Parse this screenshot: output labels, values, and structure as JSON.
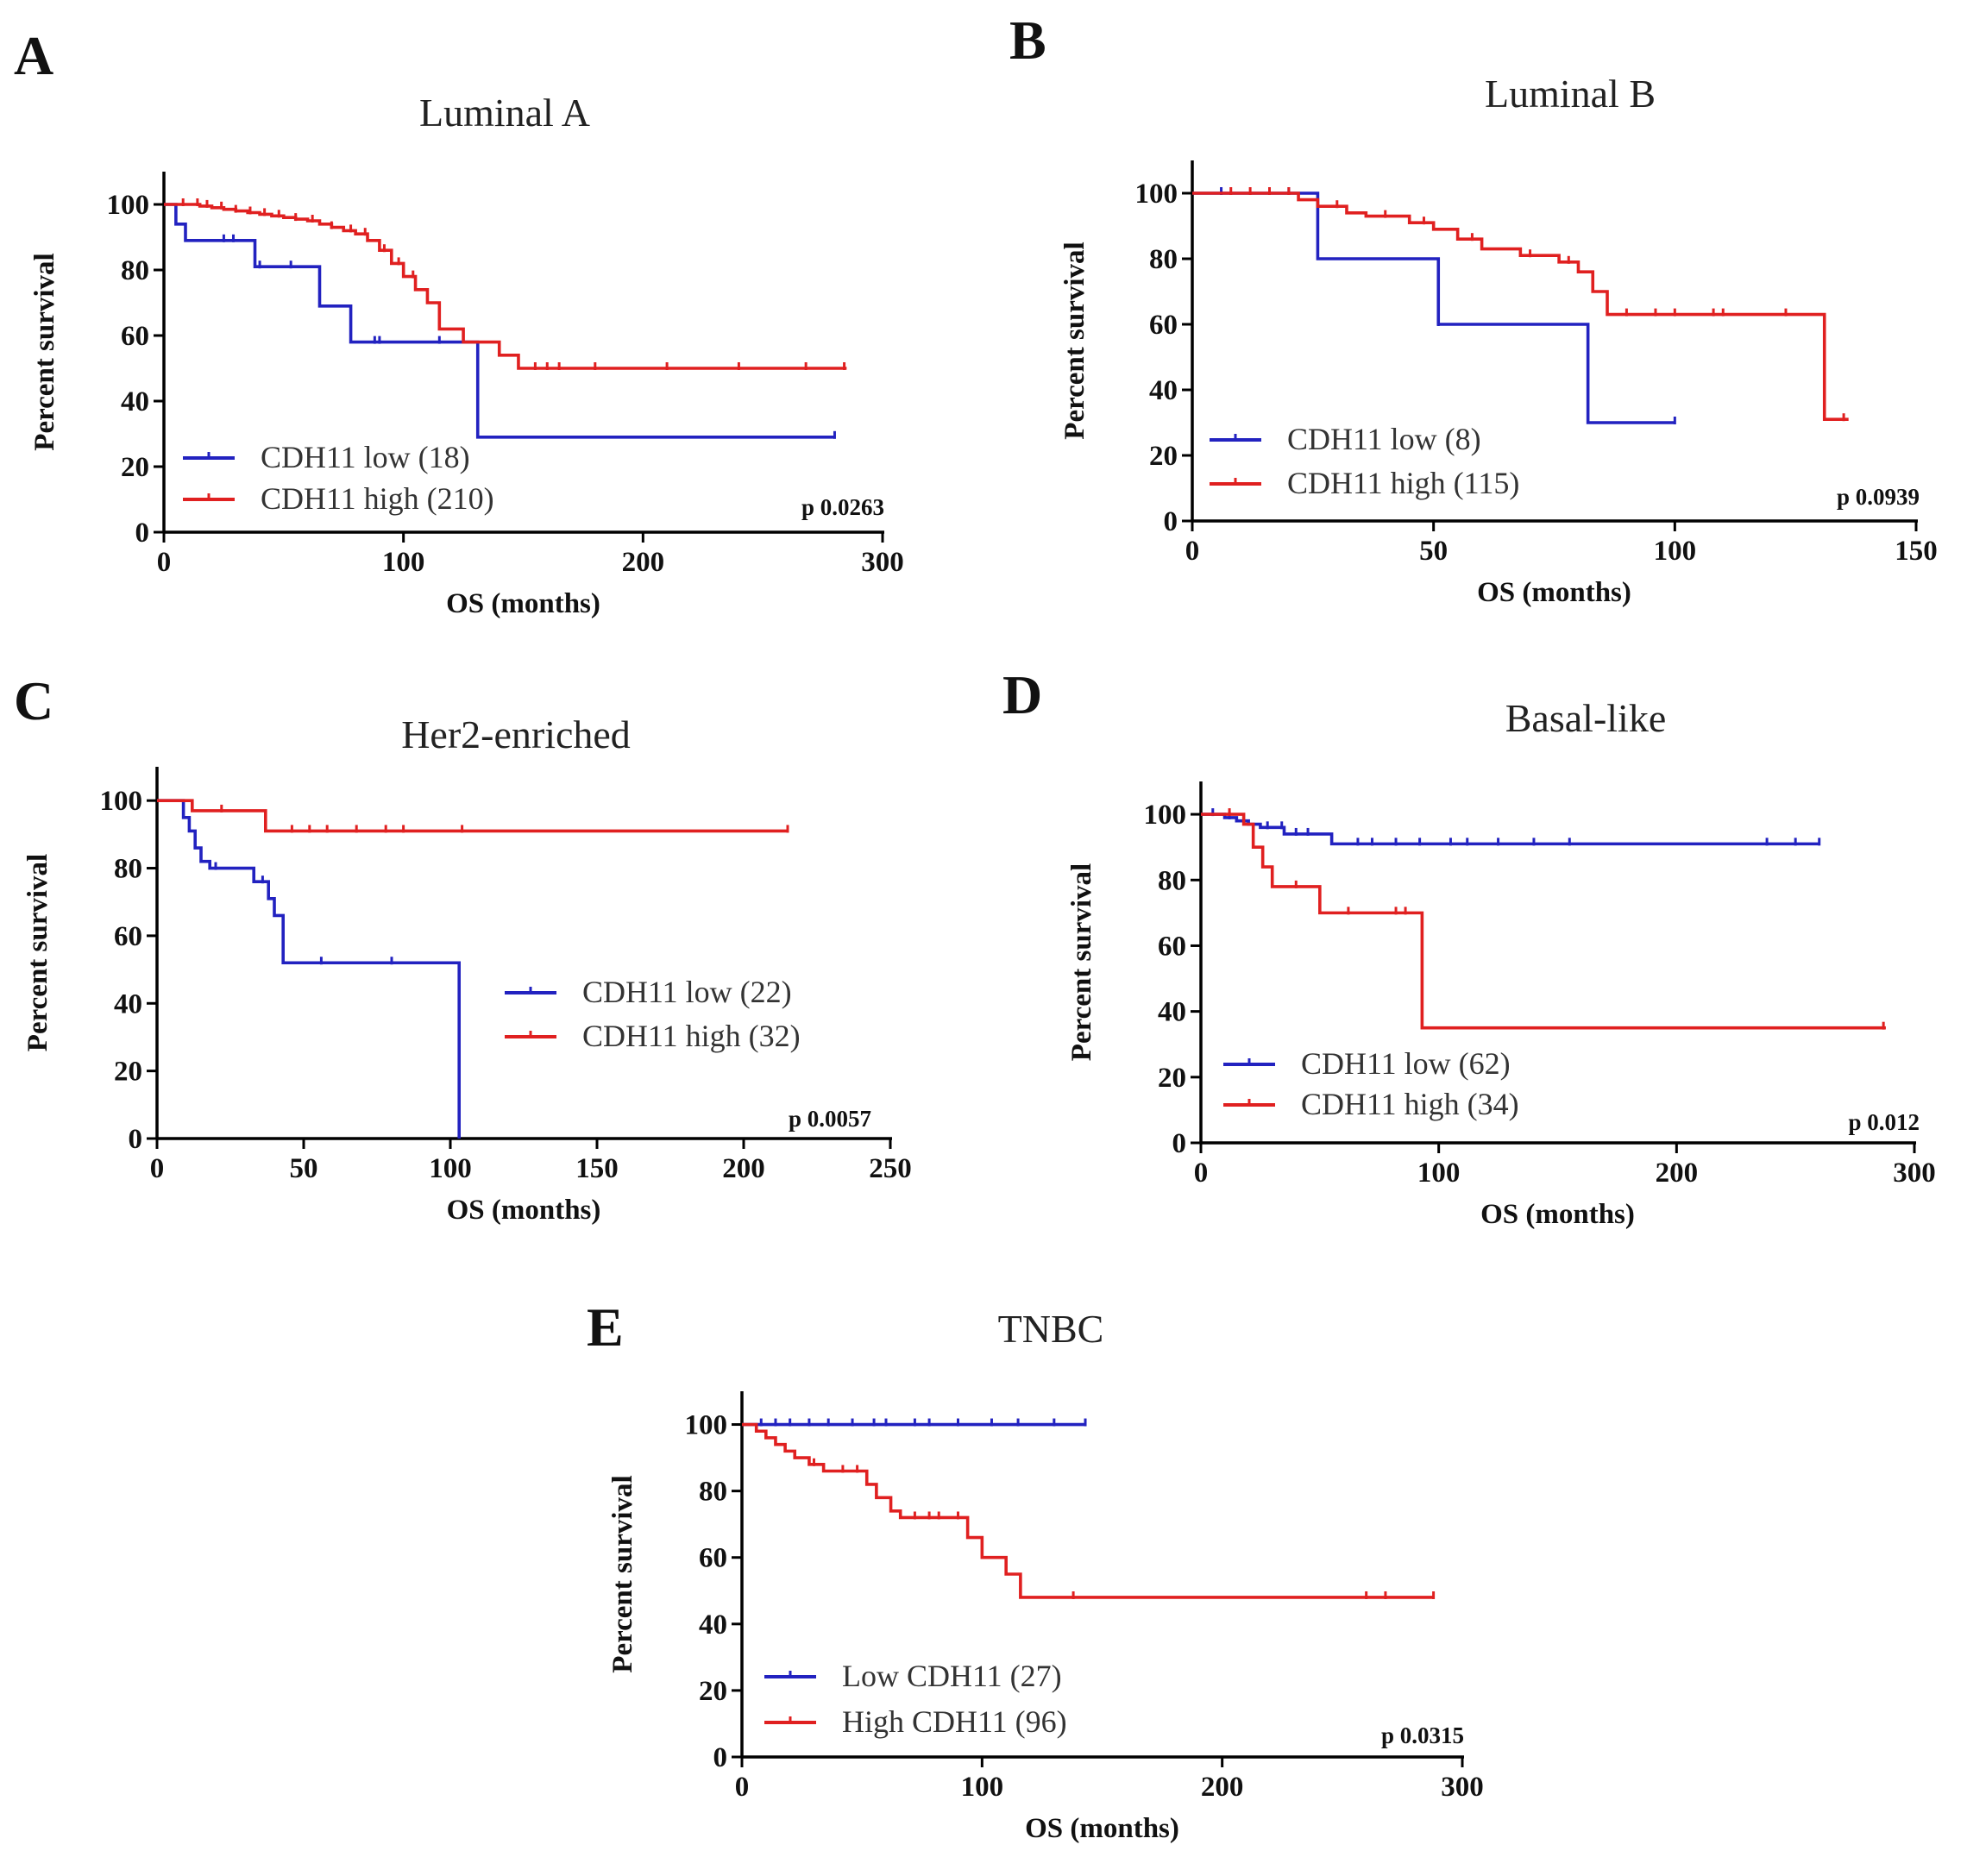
{
  "chart_data": [
    {
      "type": "line",
      "subtype": "kaplan-meier",
      "panel": "A",
      "title": "Luminal A",
      "xlabel": "OS (months)",
      "ylabel": "Percent survival",
      "xlim": [
        0,
        300
      ],
      "ylim": [
        0,
        110
      ],
      "xticks": [
        0,
        100,
        200,
        300
      ],
      "yticks": [
        0,
        20,
        40,
        60,
        80,
        100
      ],
      "p_value": "p 0.0263",
      "legend_position": "bottom-left",
      "series": [
        {
          "name": "CDH11 low (18)",
          "color": "#2222c0",
          "x": [
            0,
            5,
            9,
            38,
            65,
            78,
            131,
            280
          ],
          "y": [
            100,
            94,
            89,
            81,
            69,
            58,
            29,
            29
          ],
          "censor_x": [
            25,
            29,
            40,
            53,
            88,
            90,
            115,
            280
          ]
        },
        {
          "name": "CDH11 high (210)",
          "color": "#e02020",
          "x": [
            0,
            5,
            10,
            15,
            20,
            25,
            30,
            35,
            40,
            45,
            50,
            55,
            60,
            65,
            70,
            75,
            80,
            85,
            90,
            95,
            100,
            105,
            110,
            115,
            125,
            140,
            148,
            285
          ],
          "y": [
            100,
            100,
            100,
            99.5,
            99,
            98.5,
            98,
            97.5,
            97,
            96.5,
            96,
            95.5,
            95,
            94,
            93,
            92,
            91,
            89,
            86,
            82,
            78,
            74,
            70,
            62,
            58,
            54,
            50,
            50
          ],
          "censor_x": [
            8,
            14,
            18,
            24,
            30,
            36,
            42,
            48,
            55,
            62,
            70,
            78,
            84,
            92,
            98,
            104,
            155,
            160,
            165,
            180,
            210,
            240,
            268,
            284
          ]
        }
      ]
    },
    {
      "type": "line",
      "subtype": "kaplan-meier",
      "panel": "B",
      "title": "Luminal B",
      "xlabel": "OS (months)",
      "ylabel": "Percent survival",
      "xlim": [
        0,
        150
      ],
      "ylim": [
        0,
        110
      ],
      "xticks": [
        0,
        50,
        100,
        150
      ],
      "yticks": [
        0,
        20,
        40,
        60,
        80,
        100
      ],
      "p_value": "p 0.0939",
      "legend_position": "bottom-left",
      "series": [
        {
          "name": "CDH11 low (8)",
          "color": "#2222c0",
          "x": [
            0,
            26,
            51,
            82,
            100
          ],
          "y": [
            100,
            80,
            60,
            30,
            30
          ],
          "censor_x": [
            6,
            20,
            51,
            100
          ]
        },
        {
          "name": "CDH11 high (115)",
          "color": "#e02020",
          "x": [
            0,
            22,
            26,
            32,
            36,
            45,
            50,
            55,
            60,
            68,
            76,
            80,
            83,
            86,
            131,
            136
          ],
          "y": [
            100,
            98,
            96,
            94,
            93,
            91,
            89,
            86,
            83,
            81,
            79,
            76,
            70,
            63,
            31,
            31
          ],
          "censor_x": [
            8,
            12,
            16,
            20,
            30,
            40,
            48,
            58,
            70,
            78,
            90,
            96,
            100,
            108,
            110,
            123,
            135
          ]
        }
      ]
    },
    {
      "type": "line",
      "subtype": "kaplan-meier",
      "panel": "C",
      "title": "Her2-enriched",
      "xlabel": "OS (months)",
      "ylabel": "Percent survival",
      "xlim": [
        0,
        250
      ],
      "ylim": [
        0,
        110
      ],
      "xticks": [
        0,
        50,
        100,
        150,
        200,
        250
      ],
      "yticks": [
        0,
        20,
        40,
        60,
        80,
        100
      ],
      "p_value": "p 0.0057",
      "legend_position": "center-right",
      "series": [
        {
          "name": "CDH11 low (22)",
          "color": "#2222c0",
          "x": [
            0,
            9,
            11,
            13,
            15,
            18,
            33,
            38,
            40,
            43,
            102,
            103
          ],
          "y": [
            100,
            95,
            91,
            86,
            82,
            80,
            76,
            71,
            66,
            52,
            52,
            0
          ],
          "censor_x": [
            20,
            36,
            56,
            80
          ]
        },
        {
          "name": "CDH11 high (32)",
          "color": "#e02020",
          "x": [
            0,
            12,
            37,
            215
          ],
          "y": [
            100,
            97,
            91,
            91
          ],
          "censor_x": [
            22,
            46,
            52,
            58,
            68,
            78,
            84,
            104,
            215
          ]
        }
      ]
    },
    {
      "type": "line",
      "subtype": "kaplan-meier",
      "panel": "D",
      "title": "Basal-like",
      "xlabel": "OS (months)",
      "ylabel": "Percent survival",
      "xlim": [
        0,
        300
      ],
      "ylim": [
        0,
        110
      ],
      "xticks": [
        0,
        100,
        200,
        300
      ],
      "yticks": [
        0,
        20,
        40,
        60,
        80,
        100
      ],
      "p_value": "p 0.012",
      "legend_position": "bottom-left",
      "series": [
        {
          "name": "CDH11 low (62)",
          "color": "#2222c0",
          "x": [
            0,
            10,
            15,
            20,
            25,
            35,
            55,
            260
          ],
          "y": [
            100,
            99,
            98,
            97,
            96,
            94,
            91,
            91
          ],
          "censor_x": [
            5,
            12,
            18,
            28,
            34,
            40,
            45,
            66,
            72,
            82,
            92,
            105,
            112,
            125,
            140,
            155,
            238,
            250,
            260
          ]
        },
        {
          "name": "CDH11 high (34)",
          "color": "#e02020",
          "x": [
            0,
            18,
            22,
            26,
            30,
            50,
            93,
            288
          ],
          "y": [
            100,
            97,
            90,
            84,
            78,
            70,
            35,
            35
          ],
          "censor_x": [
            12,
            40,
            62,
            82,
            86,
            287
          ]
        }
      ]
    },
    {
      "type": "line",
      "subtype": "kaplan-meier",
      "panel": "E",
      "title": "TNBC",
      "xlabel": "OS (months)",
      "ylabel": "Percent survival",
      "xlim": [
        0,
        300
      ],
      "ylim": [
        0,
        110
      ],
      "xticks": [
        0,
        100,
        200,
        300
      ],
      "yticks": [
        0,
        20,
        40,
        60,
        80,
        100
      ],
      "p_value": "p 0.0315",
      "legend_position": "bottom-left",
      "series": [
        {
          "name": "Low CDH11 (27)",
          "color": "#2222c0",
          "x": [
            0,
            143
          ],
          "y": [
            100,
            100
          ],
          "censor_x": [
            8,
            14,
            20,
            28,
            36,
            46,
            55,
            60,
            72,
            78,
            90,
            104,
            115,
            130,
            143
          ]
        },
        {
          "name": "High CDH11 (96)",
          "color": "#e02020",
          "x": [
            0,
            6,
            10,
            14,
            18,
            22,
            28,
            34,
            52,
            56,
            62,
            66,
            94,
            100,
            110,
            116,
            288
          ],
          "y": [
            100,
            98,
            96,
            94,
            92,
            90,
            88,
            86,
            82,
            78,
            74,
            72,
            66,
            60,
            55,
            48,
            48
          ],
          "censor_x": [
            30,
            42,
            48,
            72,
            78,
            82,
            90,
            138,
            260,
            268,
            288
          ]
        }
      ]
    }
  ]
}
